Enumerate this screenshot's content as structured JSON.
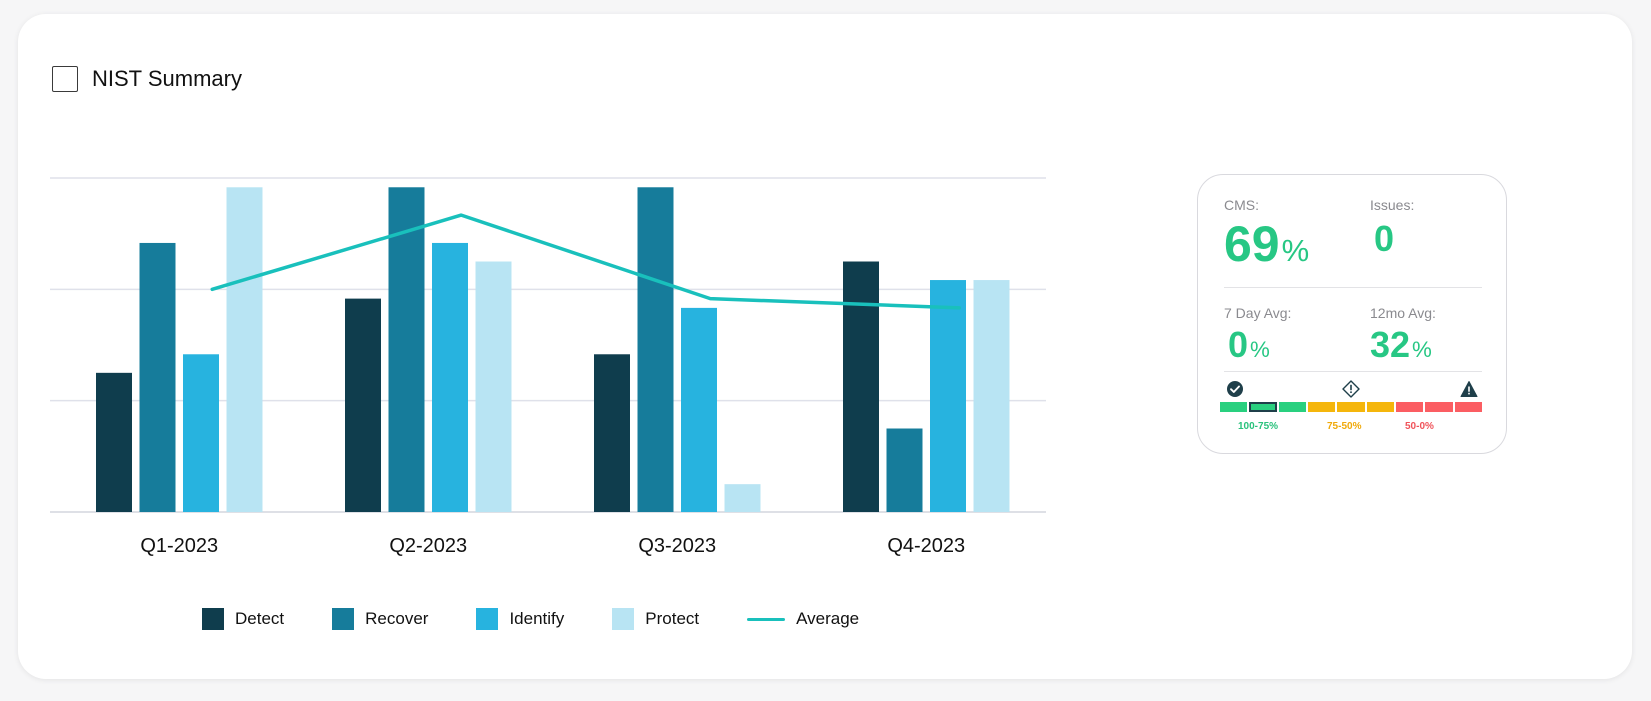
{
  "header": {
    "title": "NIST Summary"
  },
  "chart_data": {
    "type": "bar",
    "categories": [
      "Q1-2023",
      "Q2-2023",
      "Q3-2023",
      "Q4-2023"
    ],
    "series": [
      {
        "name": "Detect",
        "color": "#0f3d4d",
        "values": [
          55,
          63,
          57,
          67
        ]
      },
      {
        "name": "Recover",
        "color": "#167c9b",
        "values": [
          69,
          75,
          75,
          49
        ]
      },
      {
        "name": "Identify",
        "color": "#27b3df",
        "values": [
          57,
          69,
          62,
          65
        ]
      },
      {
        "name": "Protect",
        "color": "#b8e4f3",
        "values": [
          75,
          67,
          43,
          65
        ]
      }
    ],
    "line": {
      "name": "Average",
      "color": "#19c0bc",
      "values": [
        64,
        72,
        63,
        62
      ]
    },
    "ylim": [
      40,
      76
    ],
    "grid": true,
    "legend_position": "bottom"
  },
  "stats": {
    "cms": {
      "label": "CMS:",
      "value": "69",
      "unit": "%"
    },
    "issues": {
      "label": "Issues:",
      "value": "0"
    },
    "avg7": {
      "label": "7 Day Avg:",
      "value": "0",
      "unit": "%"
    },
    "avg12": {
      "label": "12mo Avg:",
      "value": "32",
      "unit": "%"
    },
    "scale": {
      "segments": [
        "#29d07f",
        "#29d07f",
        "#29d07f",
        "#f5b60c",
        "#f5b60c",
        "#f5b60c",
        "#fb5d62",
        "#fb5d62",
        "#fb5d62"
      ],
      "selected_index": 1,
      "labels": [
        {
          "text": "100-75%",
          "color": "#29c27c"
        },
        {
          "text": "75-50%",
          "color": "#f0a90a"
        },
        {
          "text": "50-0%",
          "color": "#f0535a"
        }
      ],
      "icons": [
        "check-circle-icon",
        "warning-diamond-icon",
        "alert-triangle-icon"
      ],
      "icon_color": "#1f3f4a"
    }
  }
}
